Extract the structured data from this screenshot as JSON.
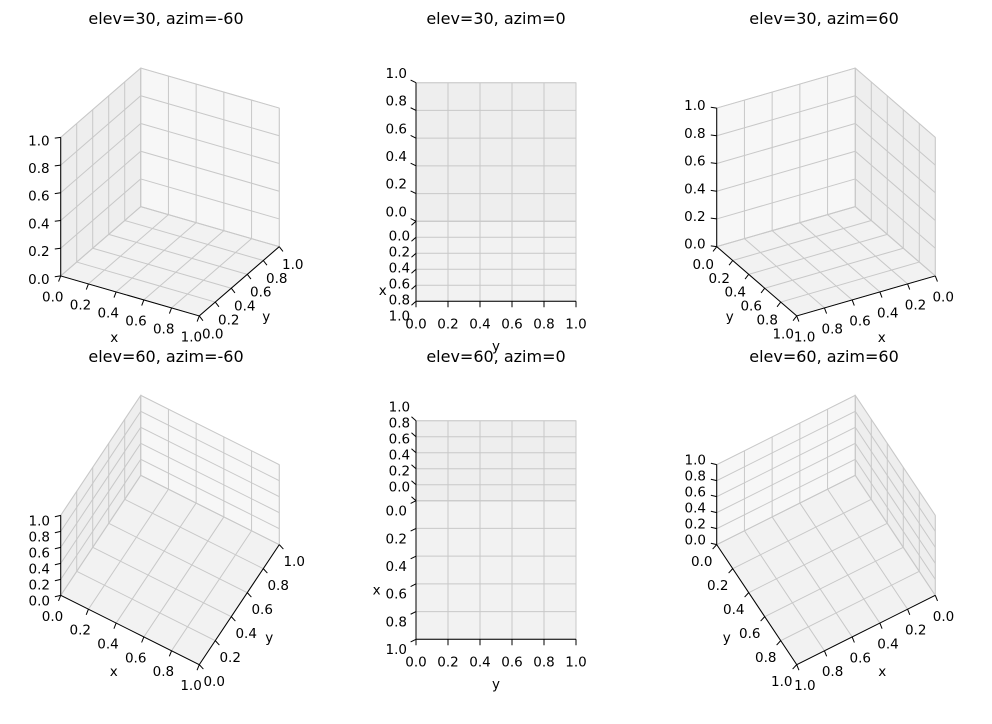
{
  "chart_data": [
    {
      "type": "3d-axes",
      "title": "elev=30, azim=-60",
      "elev": 30,
      "azim": -60,
      "xlabel": "x",
      "ylabel": "y",
      "zlabel": "",
      "xlim": [
        0,
        1
      ],
      "ylim": [
        0,
        1
      ],
      "zlim": [
        0,
        1
      ],
      "xticks": [
        "0.0",
        "0.2",
        "0.4",
        "0.6",
        "0.8",
        "1.0"
      ],
      "yticks": [
        "0.0",
        "0.2",
        "0.4",
        "0.6",
        "0.8",
        "1.0"
      ],
      "zticks": [
        "0.0",
        "0.2",
        "0.4",
        "0.6",
        "0.8",
        "1.0"
      ],
      "grid": true
    },
    {
      "type": "3d-axes",
      "title": "elev=30, azim=0",
      "elev": 30,
      "azim": 0,
      "xlabel": "x",
      "ylabel": "y",
      "zlabel": "",
      "xlim": [
        0,
        1
      ],
      "ylim": [
        0,
        1
      ],
      "zlim": [
        0,
        1
      ],
      "xticks": [
        "0.0",
        "0.2",
        "0.4",
        "0.6",
        "0.8",
        "1.0"
      ],
      "yticks": [
        "0.0",
        "0.2",
        "0.4",
        "0.6",
        "0.8",
        "1.0"
      ],
      "zticks": [
        "0.0",
        "0.2",
        "0.4",
        "0.6",
        "0.8",
        "1.0"
      ],
      "grid": true
    },
    {
      "type": "3d-axes",
      "title": "elev=30, azim=60",
      "elev": 30,
      "azim": 60,
      "xlabel": "x",
      "ylabel": "y",
      "zlabel": "",
      "xlim": [
        0,
        1
      ],
      "ylim": [
        0,
        1
      ],
      "zlim": [
        0,
        1
      ],
      "xticks": [
        "0.0",
        "0.2",
        "0.4",
        "0.6",
        "0.8",
        "1.0"
      ],
      "yticks": [
        "0.0",
        "0.2",
        "0.4",
        "0.6",
        "0.8",
        "1.0"
      ],
      "zticks": [
        "0.0",
        "0.2",
        "0.4",
        "0.6",
        "0.8",
        "1.0"
      ],
      "grid": true
    },
    {
      "type": "3d-axes",
      "title": "elev=60, azim=-60",
      "elev": 60,
      "azim": -60,
      "xlabel": "x",
      "ylabel": "y",
      "zlabel": "",
      "xlim": [
        0,
        1
      ],
      "ylim": [
        0,
        1
      ],
      "zlim": [
        0,
        1
      ],
      "xticks": [
        "0.0",
        "0.2",
        "0.4",
        "0.6",
        "0.8",
        "1.0"
      ],
      "yticks": [
        "0.0",
        "0.2",
        "0.4",
        "0.6",
        "0.8",
        "1.0"
      ],
      "zticks": [
        "0.0",
        "0.2",
        "0.4",
        "0.6",
        "0.8",
        "1.0"
      ],
      "grid": true
    },
    {
      "type": "3d-axes",
      "title": "elev=60, azim=0",
      "elev": 60,
      "azim": 0,
      "xlabel": "x",
      "ylabel": "y",
      "zlabel": "",
      "xlim": [
        0,
        1
      ],
      "ylim": [
        0,
        1
      ],
      "zlim": [
        0,
        1
      ],
      "xticks": [
        "0.0",
        "0.2",
        "0.4",
        "0.6",
        "0.8",
        "1.0"
      ],
      "yticks": [
        "0.0",
        "0.2",
        "0.4",
        "0.6",
        "0.8",
        "1.0"
      ],
      "zticks": [
        "0.0",
        "0.2",
        "0.4",
        "0.6",
        "0.8",
        "1.0"
      ],
      "grid": true
    },
    {
      "type": "3d-axes",
      "title": "elev=60, azim=60",
      "elev": 60,
      "azim": 60,
      "xlabel": "x",
      "ylabel": "y",
      "zlabel": "",
      "xlim": [
        0,
        1
      ],
      "ylim": [
        0,
        1
      ],
      "zlim": [
        0,
        1
      ],
      "xticks": [
        "0.0",
        "0.2",
        "0.4",
        "0.6",
        "0.8",
        "1.0"
      ],
      "yticks": [
        "0.0",
        "0.2",
        "0.4",
        "0.6",
        "0.8",
        "1.0"
      ],
      "zticks": [
        "0.0",
        "0.2",
        "0.4",
        "0.6",
        "0.8",
        "1.0"
      ],
      "grid": true
    }
  ],
  "colors": {
    "pane_floor": "#f2f2f2",
    "pane_side": "#eeeeee",
    "pane_back": "#f7f7f7",
    "grid": "#c8c8c8",
    "pane_edge": "#dedede",
    "axis_line": "#000000",
    "text": "#000000"
  }
}
